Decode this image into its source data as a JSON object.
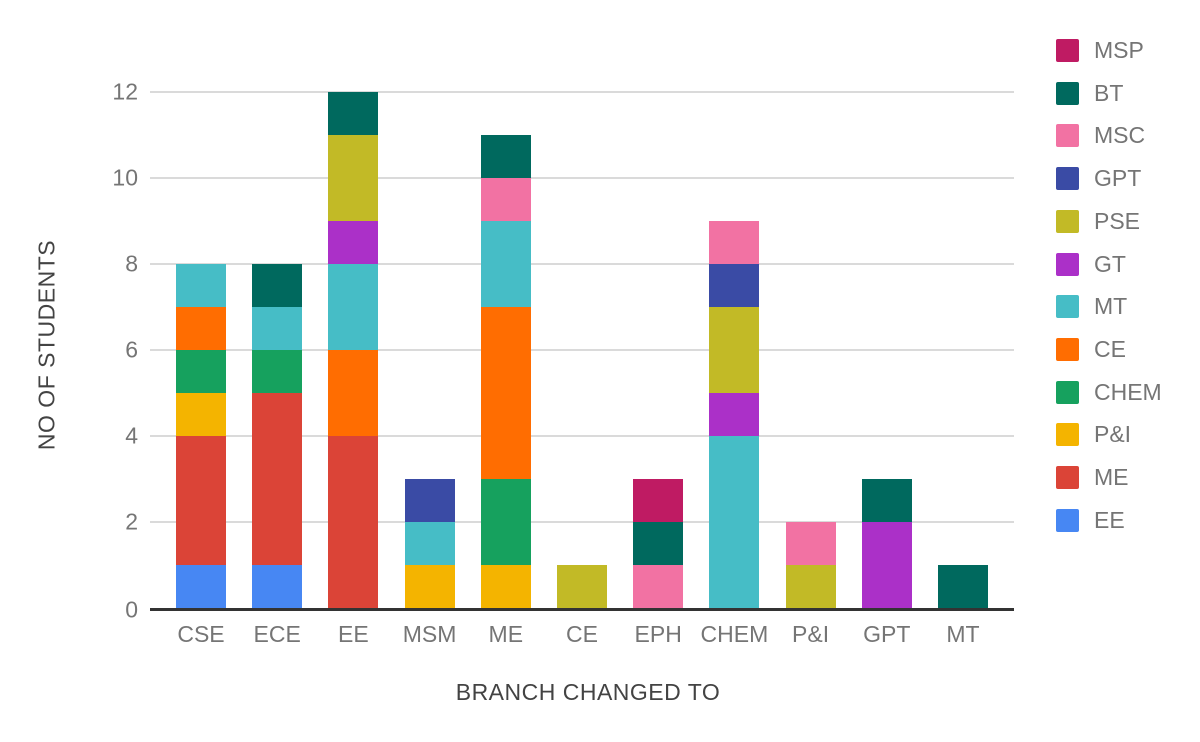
{
  "chart_data": {
    "type": "bar",
    "stacked": true,
    "title": "",
    "xlabel": "BRANCH CHANGED TO",
    "ylabel": "NO OF STUDENTS",
    "categories": [
      "CSE",
      "ECE",
      "EE",
      "MSM",
      "ME",
      "CE",
      "EPH",
      "CHEM",
      "P&I",
      "GPT",
      "MT"
    ],
    "yticks": [
      0,
      2,
      4,
      6,
      8,
      10,
      12
    ],
    "ylim": [
      0,
      12
    ],
    "grid": true,
    "legend_position": "right",
    "legend_order": [
      "MSP",
      "BT",
      "MSC",
      "GPT",
      "PSE",
      "GT",
      "MT",
      "CE",
      "CHEM",
      "P&I",
      "ME",
      "EE"
    ],
    "series": [
      {
        "name": "EE",
        "color": "#4787F3",
        "values": [
          1,
          1,
          0,
          0,
          0,
          0,
          0,
          0,
          0,
          0,
          0
        ]
      },
      {
        "name": "ME",
        "color": "#DB4437",
        "values": [
          3,
          4,
          4,
          0,
          0,
          0,
          0,
          0,
          0,
          0,
          0
        ]
      },
      {
        "name": "P&I",
        "color": "#F4B400",
        "values": [
          1,
          0,
          0,
          1,
          1,
          0,
          0,
          0,
          0,
          0,
          0
        ]
      },
      {
        "name": "CHEM",
        "color": "#16A15E",
        "values": [
          1,
          1,
          0,
          0,
          2,
          0,
          0,
          0,
          0,
          0,
          0
        ]
      },
      {
        "name": "CE",
        "color": "#FF6D01",
        "values": [
          1,
          0,
          2,
          0,
          4,
          0,
          0,
          0,
          0,
          0,
          0
        ]
      },
      {
        "name": "MT",
        "color": "#46BDC6",
        "values": [
          1,
          1,
          2,
          1,
          2,
          0,
          0,
          4,
          0,
          0,
          0
        ]
      },
      {
        "name": "GT",
        "color": "#AB30C8",
        "values": [
          0,
          0,
          1,
          0,
          0,
          0,
          0,
          1,
          0,
          2,
          0
        ]
      },
      {
        "name": "PSE",
        "color": "#C2BA26",
        "values": [
          0,
          0,
          2,
          0,
          0,
          1,
          0,
          2,
          1,
          0,
          0
        ]
      },
      {
        "name": "GPT",
        "color": "#3A4BA5",
        "values": [
          0,
          0,
          0,
          1,
          0,
          0,
          0,
          1,
          0,
          0,
          0
        ]
      },
      {
        "name": "MSC",
        "color": "#F272A3",
        "values": [
          0,
          0,
          0,
          0,
          1,
          0,
          1,
          1,
          1,
          0,
          0
        ]
      },
      {
        "name": "BT",
        "color": "#00695E",
        "values": [
          0,
          1,
          1,
          0,
          1,
          0,
          1,
          0,
          0,
          1,
          1
        ]
      },
      {
        "name": "MSP",
        "color": "#BF1B63",
        "values": [
          0,
          0,
          0,
          0,
          0,
          0,
          1,
          0,
          0,
          0,
          0
        ]
      }
    ],
    "gridline_color": "#DADADA",
    "axis_color": "#333333",
    "tick_label_color": "#757575",
    "axis_title_color": "#434343",
    "background_color": "#FFFFFF"
  }
}
